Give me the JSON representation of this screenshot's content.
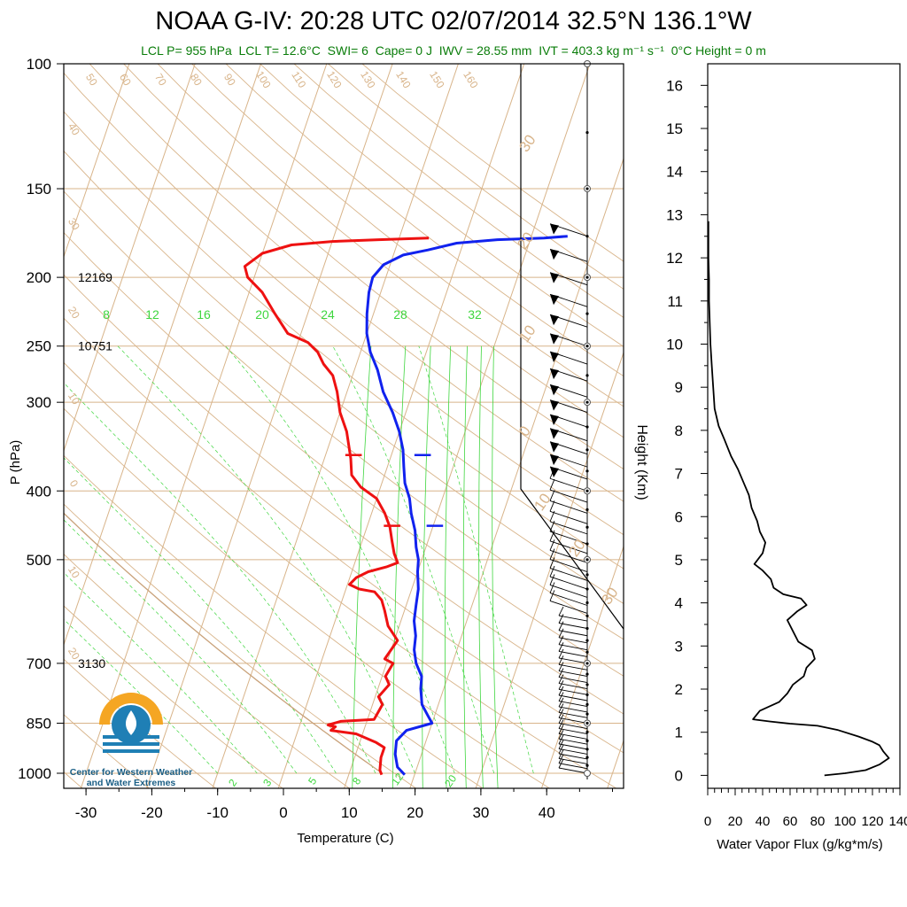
{
  "title": "NOAA G-IV: 20:28 UTC 02/07/2014  32.5°N 136.1°W",
  "subtitle": {
    "lcl_p": "LCL P= 955 hPa",
    "lcl_t": "LCL T= 12.6°C",
    "swi": "SWI= 6",
    "cape": "Cape= 0 J",
    "iwv": "IWV = 28.55 mm",
    "ivt": "IVT = 403.3 kg m⁻¹ s⁻¹",
    "zero_height": "0°C Height = 0 m"
  },
  "logo": {
    "name_line1": "Center for Western Weather",
    "name_line2": "and Water Extremes",
    "colors": {
      "sun": "#f5a623",
      "water": "#1f7fb5"
    }
  },
  "chart_data": [
    {
      "type": "line",
      "subtype": "skew-t",
      "xlabel": "Temperature (C)",
      "ylabel": "P (hPa)",
      "xlim": [
        -33,
        52
      ],
      "ylim": [
        1020,
        100
      ],
      "y_scale": "log",
      "x_ticks": [
        -30,
        -20,
        -10,
        0,
        10,
        20,
        30,
        40
      ],
      "y_ticks": [
        100,
        150,
        200,
        250,
        300,
        400,
        500,
        700,
        850,
        1000
      ],
      "height_labels": [
        {
          "p": 200,
          "text": "12169"
        },
        {
          "p": 250,
          "text": "10751"
        },
        {
          "p": 700,
          "text": "3130"
        }
      ],
      "mixing_ratio_labels": [
        "8",
        "12",
        "16",
        "20",
        "24",
        "28",
        "32"
      ],
      "lower_mixing_labels": [
        "2",
        "3",
        "5",
        "8",
        "12",
        "20"
      ],
      "dry_adiabat_labels": [
        "50",
        "60",
        "70",
        "80",
        "90",
        "100",
        "110",
        "120",
        "130",
        "140",
        "150",
        "160"
      ],
      "theta_left_labels": [
        "40",
        "30",
        "20",
        "10",
        "0",
        "10",
        "20"
      ],
      "theta_right_labels": [
        "30",
        "20",
        "10",
        "0",
        "10",
        "20",
        "30"
      ],
      "grid": true,
      "series": [
        {
          "name": "",
          "color": "#ee1111",
          "points": [
            [
              15,
              1005
            ],
            [
              14.5,
              990
            ],
            [
              14,
              950
            ],
            [
              14,
              920
            ],
            [
              12.5,
              905
            ],
            [
              9,
              880
            ],
            [
              5,
              870
            ],
            [
              5.5,
              860
            ],
            [
              4.3,
              855
            ],
            [
              6,
              845
            ],
            [
              11,
              840
            ],
            [
              11.5,
              800
            ],
            [
              10.5,
              780
            ],
            [
              11.5,
              750
            ],
            [
              10.5,
              730
            ],
            [
              11,
              700
            ],
            [
              9.5,
              690
            ],
            [
              10.5,
              650
            ],
            [
              8.3,
              620
            ],
            [
              7,
              590
            ],
            [
              6,
              570
            ],
            [
              4.5,
              555
            ],
            [
              2,
              550
            ],
            [
              0.3,
              542
            ],
            [
              1,
              530
            ],
            [
              2.5,
              520
            ],
            [
              5,
              512
            ],
            [
              6.5,
              505
            ],
            [
              5.5,
              490
            ],
            [
              4.5,
              470
            ],
            [
              3.5,
              450
            ],
            [
              2,
              430
            ],
            [
              0,
              410
            ],
            [
              -3,
              395
            ],
            [
              -5,
              380
            ],
            [
              -6,
              360
            ],
            [
              -8,
              330
            ],
            [
              -10,
              310
            ],
            [
              -11.5,
              290
            ],
            [
              -13,
              275
            ],
            [
              -15,
              265
            ],
            [
              -16.5,
              255
            ],
            [
              -18.5,
              247
            ],
            [
              -22,
              240
            ],
            [
              -25,
              225
            ],
            [
              -28,
              210
            ],
            [
              -31,
              200
            ],
            [
              -32,
              193
            ],
            [
              -30,
              185
            ],
            [
              -26,
              180
            ],
            [
              -20,
              178
            ],
            [
              -13,
              177
            ],
            [
              -5.5,
              176
            ]
          ]
        },
        {
          "name": "",
          "color": "#1122ee",
          "points": [
            [
              18.5,
              1005
            ],
            [
              17,
              980
            ],
            [
              16,
              940
            ],
            [
              15.5,
              900
            ],
            [
              16.5,
              870
            ],
            [
              20,
              850
            ],
            [
              19,
              830
            ],
            [
              17.5,
              800
            ],
            [
              16.5,
              760
            ],
            [
              16,
              730
            ],
            [
              14.5,
              700
            ],
            [
              13.5,
              670
            ],
            [
              13,
              640
            ],
            [
              12,
              610
            ],
            [
              11.5,
              580
            ],
            [
              11,
              550
            ],
            [
              10,
              520
            ],
            [
              9.5,
              500
            ],
            [
              8.5,
              480
            ],
            [
              7.5,
              455
            ],
            [
              6,
              430
            ],
            [
              5,
              410
            ],
            [
              3.5,
              390
            ],
            [
              2.5,
              370
            ],
            [
              1.5,
              350
            ],
            [
              0,
              330
            ],
            [
              -2,
              310
            ],
            [
              -4.5,
              290
            ],
            [
              -6.5,
              270
            ],
            [
              -8.5,
              255
            ],
            [
              -10,
              240
            ],
            [
              -11,
              225
            ],
            [
              -11.8,
              210
            ],
            [
              -12,
              200
            ],
            [
              -11,
              192
            ],
            [
              -8.5,
              186
            ],
            [
              -5,
              183
            ],
            [
              -1,
              179
            ],
            [
              5,
              177
            ],
            [
              12,
              176
            ],
            [
              15.5,
              175
            ]
          ]
        }
      ]
    },
    {
      "type": "line",
      "xlabel": "Water Vapor Flux (g/kg*m/s)",
      "ylabel": "Height (Km)",
      "xlim": [
        0,
        140
      ],
      "ylim": [
        -0.3,
        16.5
      ],
      "x_ticks": [
        0,
        20,
        40,
        60,
        80,
        100,
        120,
        140
      ],
      "y_ticks": [
        0,
        1,
        2,
        3,
        4,
        5,
        6,
        7,
        8,
        9,
        10,
        11,
        12,
        13,
        14,
        15,
        16
      ],
      "series": [
        {
          "name": "",
          "color": "#000000",
          "points": [
            [
              85,
              0
            ],
            [
              100,
              0.05
            ],
            [
              115,
              0.12
            ],
            [
              125,
              0.25
            ],
            [
              132,
              0.4
            ],
            [
              128,
              0.55
            ],
            [
              125,
              0.7
            ],
            [
              120,
              0.78
            ],
            [
              110,
              0.9
            ],
            [
              95,
              1.05
            ],
            [
              80,
              1.15
            ],
            [
              60,
              1.2
            ],
            [
              45,
              1.25
            ],
            [
              33,
              1.3
            ],
            [
              38,
              1.5
            ],
            [
              52,
              1.7
            ],
            [
              58,
              1.9
            ],
            [
              62,
              2.1
            ],
            [
              70,
              2.3
            ],
            [
              72,
              2.5
            ],
            [
              78,
              2.7
            ],
            [
              76,
              2.9
            ],
            [
              66,
              3.1
            ],
            [
              62,
              3.35
            ],
            [
              58,
              3.6
            ],
            [
              65,
              3.8
            ],
            [
              72,
              3.95
            ],
            [
              68,
              4.1
            ],
            [
              55,
              4.2
            ],
            [
              48,
              4.35
            ],
            [
              46,
              4.55
            ],
            [
              40,
              4.75
            ],
            [
              34,
              4.9
            ],
            [
              40,
              5.15
            ],
            [
              42,
              5.4
            ],
            [
              38,
              5.65
            ],
            [
              36,
              5.9
            ],
            [
              32,
              6.2
            ],
            [
              30,
              6.5
            ],
            [
              26,
              6.8
            ],
            [
              22,
              7.1
            ],
            [
              17,
              7.4
            ],
            [
              12,
              7.8
            ],
            [
              8,
              8.1
            ],
            [
              5,
              8.5
            ],
            [
              4,
              9
            ],
            [
              3,
              9.5
            ],
            [
              2,
              10
            ],
            [
              1.5,
              10.5
            ],
            [
              1,
              11
            ],
            [
              1,
              11.5
            ],
            [
              0.5,
              12
            ],
            [
              0.5,
              12.5
            ],
            [
              0.5,
              12.85
            ]
          ]
        }
      ]
    }
  ]
}
